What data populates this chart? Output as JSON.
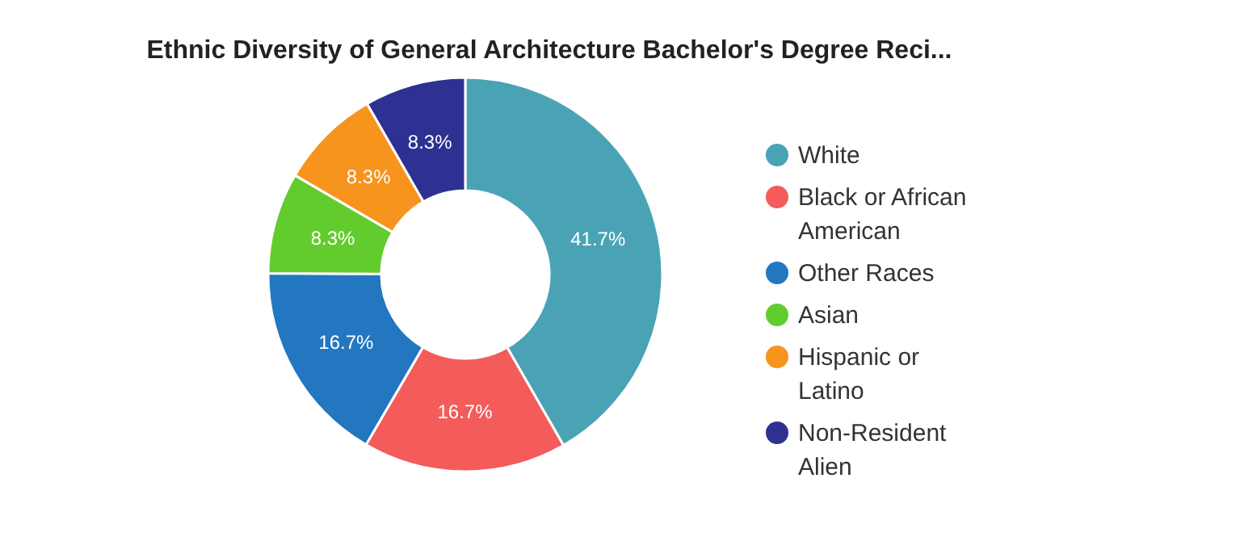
{
  "chart_data": {
    "type": "donut",
    "title": "Ethnic Diversity of General Architecture Bachelor's Degree Reci...",
    "categories": [
      "White",
      "Black or African American",
      "Other Races",
      "Asian",
      "Hispanic or Latino",
      "Non-Resident Alien"
    ],
    "values": [
      41.7,
      16.7,
      16.7,
      8.3,
      8.3,
      8.3
    ],
    "colors": [
      "#4aa3b5",
      "#f45b5b",
      "#2277c0",
      "#62cc2e",
      "#f7941d",
      "#2e3192"
    ],
    "value_labels": [
      "41.7%",
      "16.7%",
      "16.7%",
      "8.3%",
      "8.3%",
      "8.3%"
    ],
    "legend": "right"
  }
}
